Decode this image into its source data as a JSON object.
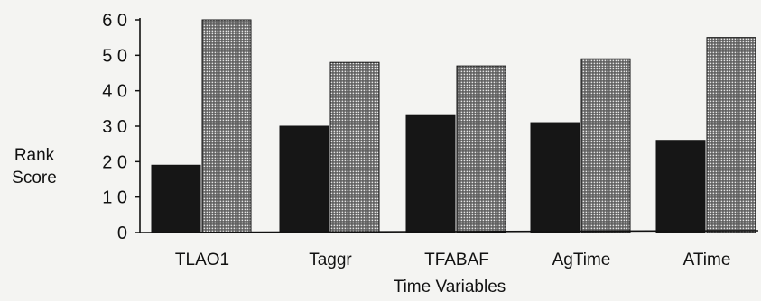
{
  "chart_data": {
    "type": "bar",
    "title": "",
    "xlabel": "Time Variables",
    "ylabel": [
      "Rank",
      "Score"
    ],
    "categories": [
      "TLAO1",
      "Taggr",
      "TFABAF",
      "AgTime",
      "ATime"
    ],
    "series": [
      {
        "values": [
          19,
          30,
          33,
          31,
          26
        ],
        "color": "#161616",
        "pattern": "solid"
      },
      {
        "values": [
          60,
          48,
          47,
          49,
          55
        ],
        "color": "#6e6e6e",
        "pattern": "dotted"
      }
    ],
    "ylim": [
      0,
      60
    ],
    "yticks": [
      0,
      10,
      20,
      30,
      40,
      50,
      60
    ],
    "ytick_labels": [
      "0",
      "1 0",
      "2 0",
      "3 0",
      "4 0",
      "5 0",
      "6 0"
    ],
    "grid": false,
    "legend": false
  }
}
